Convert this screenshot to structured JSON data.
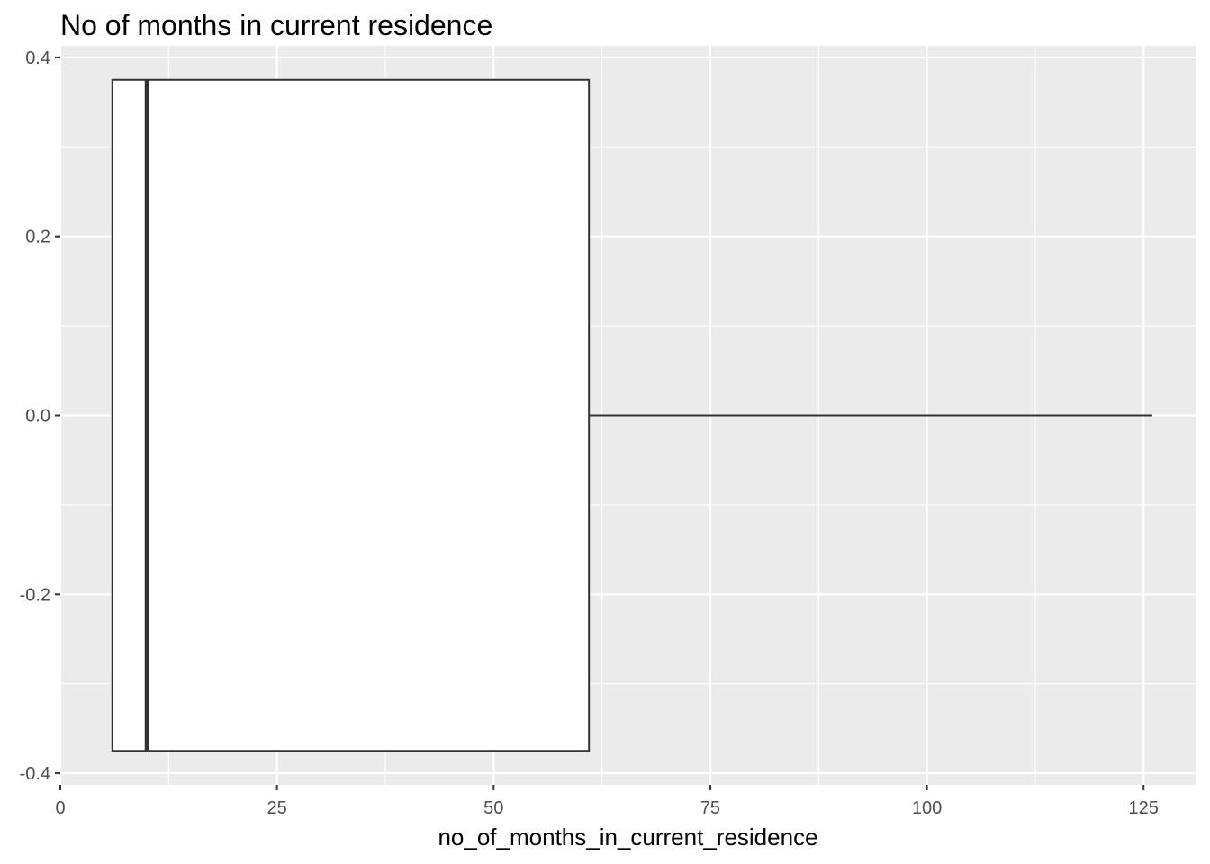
{
  "chart_data": {
    "type": "boxplot",
    "title": "No of months in current residence",
    "xlabel": "no_of_months_in_current_residence",
    "ylabel": "",
    "xlim": [
      0,
      131
    ],
    "ylim": [
      -0.413,
      0.413
    ],
    "x_ticks": [
      0,
      25,
      50,
      75,
      100,
      125
    ],
    "x_tick_labels": [
      "0",
      "25",
      "50",
      "75",
      "100",
      "125"
    ],
    "y_ticks": [
      -0.4,
      -0.2,
      0.0,
      0.2,
      0.4
    ],
    "y_tick_labels": [
      "-0.4",
      "-0.2",
      "0.0",
      "0.2",
      "0.4"
    ],
    "grid": true,
    "box": {
      "lower_whisker": 6,
      "q1": 6,
      "median": 10,
      "q3": 61,
      "upper_whisker": 126,
      "y_center": 0.0,
      "half_width": 0.375
    },
    "colors": {
      "panel_background": "#ebebeb",
      "grid_major": "#ffffff",
      "box_fill": "#ffffff",
      "box_stroke": "#333333"
    }
  }
}
